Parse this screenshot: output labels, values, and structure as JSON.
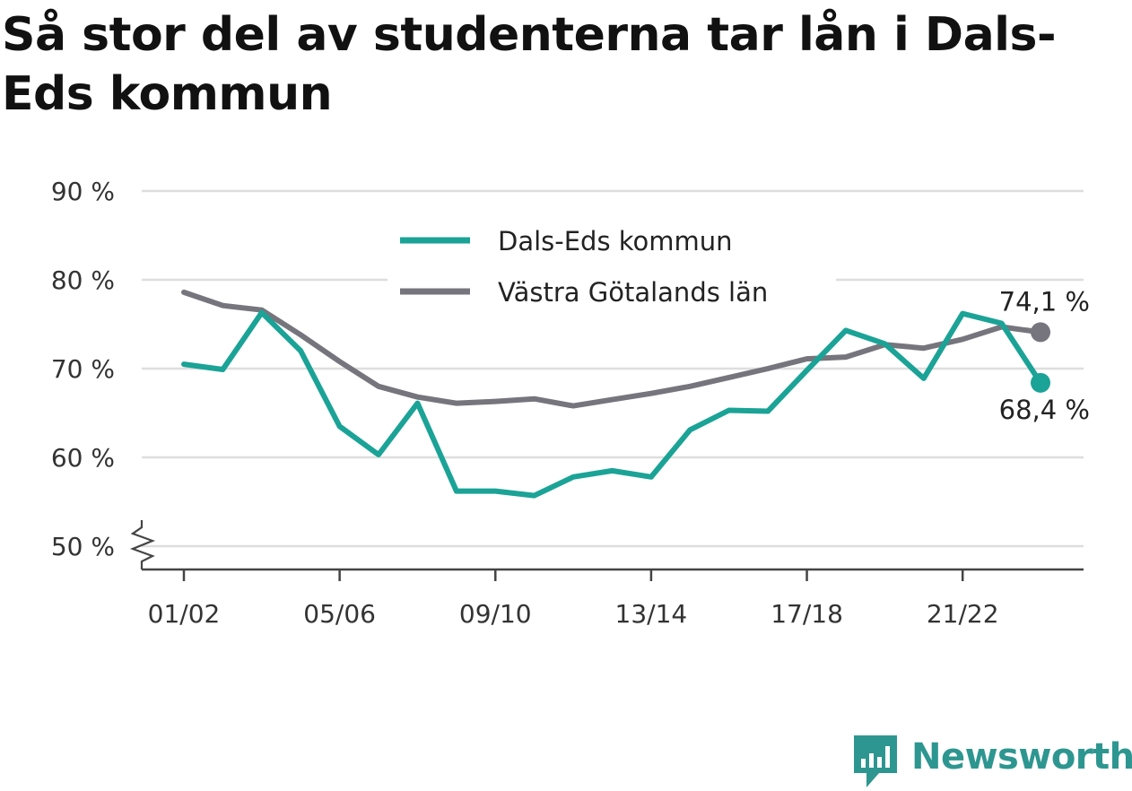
{
  "title": "Så stor del av studenterna tar lån i Dals-Eds kommun",
  "brand": "Newsworthy",
  "chart_data": {
    "type": "line",
    "title": "Så stor del av studenterna tar lån i Dals-Eds kommun",
    "xlabel": "",
    "ylabel": "",
    "x": [
      "01/02",
      "02/03",
      "03/04",
      "04/05",
      "05/06",
      "06/07",
      "07/08",
      "08/09",
      "09/10",
      "10/11",
      "11/12",
      "12/13",
      "13/14",
      "14/15",
      "15/16",
      "16/17",
      "17/18",
      "18/19",
      "19/20",
      "20/21",
      "21/22",
      "22/23",
      "23/24"
    ],
    "x_tick_labels": [
      "01/02",
      "05/06",
      "09/10",
      "13/14",
      "17/18",
      "21/22"
    ],
    "y_ticks": [
      50,
      60,
      70,
      80,
      90
    ],
    "y_tick_labels": [
      "50 %",
      "60 %",
      "70 %",
      "80 %",
      "90 %"
    ],
    "ylim": [
      50,
      90
    ],
    "y_axis_break": true,
    "grid": true,
    "legend_position": "top-center",
    "series": [
      {
        "name": "Dals-Eds kommun",
        "color": "#1aa396",
        "values": [
          70.5,
          69.9,
          76.3,
          72.0,
          63.5,
          60.3,
          66.1,
          56.2,
          56.2,
          55.7,
          57.8,
          58.5,
          57.8,
          63.1,
          65.3,
          65.2,
          69.8,
          74.3,
          72.8,
          68.9,
          76.2,
          75.1,
          68.4
        ],
        "end_label": "68,4 %"
      },
      {
        "name": "Västra Götalands län",
        "color": "#76757d",
        "values": [
          78.6,
          77.1,
          76.6,
          73.8,
          70.8,
          68.0,
          66.8,
          66.1,
          66.3,
          66.6,
          65.8,
          66.5,
          67.2,
          68.0,
          69.0,
          70.0,
          71.1,
          71.3,
          72.7,
          72.3,
          73.3,
          74.7,
          74.1
        ],
        "end_label": "74,1 %"
      }
    ]
  }
}
